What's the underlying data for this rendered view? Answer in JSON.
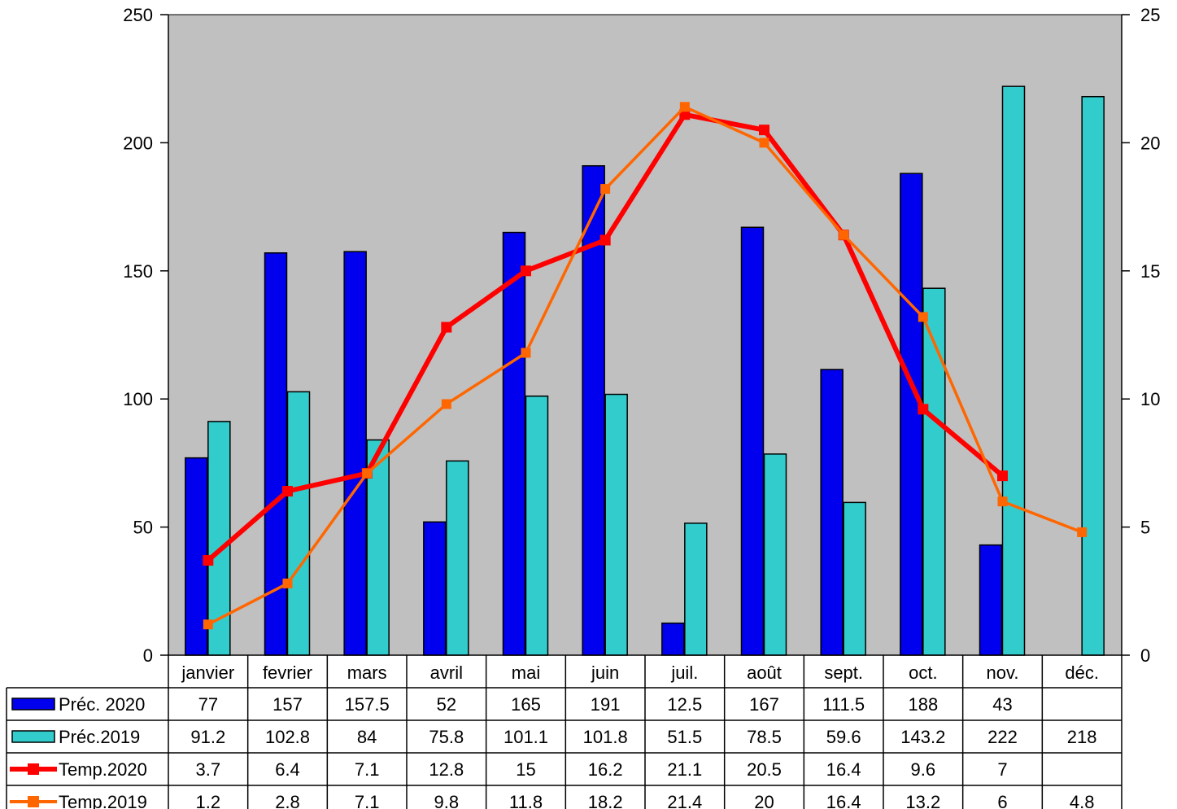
{
  "chart_data": {
    "type": "bar",
    "categories": [
      "janvier",
      "fevrier",
      "mars",
      "avril",
      "mai",
      "juin",
      "juil.",
      "août",
      "sept.",
      "oct.",
      "nov.",
      "déc."
    ],
    "ylim_left": [
      0,
      250
    ],
    "ylim_right": [
      0,
      25
    ],
    "yticks_left": [
      "0",
      "50",
      "100",
      "150",
      "200",
      "250"
    ],
    "yticks_right": [
      "0",
      "5",
      "10",
      "15",
      "20",
      "25"
    ],
    "grid": false,
    "legend": "data-table-left",
    "series": [
      {
        "name": "Préc. 2020",
        "kind": "bar",
        "axis": "left",
        "color": "#0000ee",
        "values": [
          77,
          157,
          157.5,
          52,
          165,
          191,
          12.5,
          167,
          111.5,
          188,
          43,
          null
        ],
        "labels": [
          "77",
          "157",
          "157.5",
          "52",
          "165",
          "191",
          "12.5",
          "167",
          "111.5",
          "188",
          "43",
          ""
        ]
      },
      {
        "name": "Préc.2019",
        "kind": "bar",
        "axis": "left",
        "color": "#33cccc",
        "values": [
          91.2,
          102.8,
          84,
          75.8,
          101.1,
          101.8,
          51.5,
          78.5,
          59.6,
          143.2,
          222,
          218
        ],
        "labels": [
          "91.2",
          "102.8",
          "84",
          "75.8",
          "101.1",
          "101.8",
          "51.5",
          "78.5",
          "59.6",
          "143.2",
          "222",
          "218"
        ]
      },
      {
        "name": "Temp.2020",
        "kind": "line",
        "axis": "right",
        "color": "#ff0000",
        "values": [
          3.7,
          6.4,
          7.1,
          12.8,
          15,
          16.2,
          21.1,
          20.5,
          16.4,
          9.6,
          7,
          null
        ],
        "labels": [
          "3.7",
          "6.4",
          "7.1",
          "12.8",
          "15",
          "16.2",
          "21.1",
          "20.5",
          "16.4",
          "9.6",
          "7",
          ""
        ]
      },
      {
        "name": "Temp.2019",
        "kind": "line",
        "axis": "right",
        "color": "#ff6600",
        "values": [
          1.2,
          2.8,
          7.1,
          9.8,
          11.8,
          18.2,
          21.4,
          20,
          16.4,
          13.2,
          6,
          4.8
        ],
        "labels": [
          "1.2",
          "2.8",
          "7.1",
          "9.8",
          "11.8",
          "18.2",
          "21.4",
          "20",
          "16.4",
          "13.2",
          "6",
          "4.8"
        ]
      }
    ]
  }
}
